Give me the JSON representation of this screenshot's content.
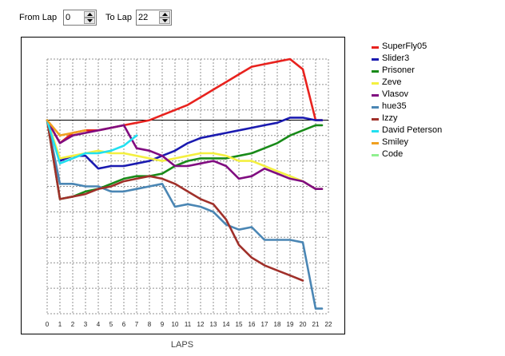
{
  "controls": {
    "from_label": "From Lap",
    "from_value": "0",
    "to_label": "To Lap",
    "to_value": "22"
  },
  "chart_data": {
    "type": "line",
    "xlabel": "LAPS",
    "ylabel": "",
    "x_ticks": [
      "0",
      "1",
      "2",
      "3",
      "4",
      "5",
      "6",
      "7",
      "8",
      "9",
      "10",
      "11",
      "12",
      "13",
      "14",
      "15",
      "16",
      "17",
      "18",
      "19",
      "20",
      "21",
      "22"
    ],
    "xlim": [
      0,
      22
    ],
    "ylim": [
      0,
      100
    ],
    "grid": true,
    "legend_position": "right",
    "series": [
      {
        "name": "SuperFly05",
        "color": "#e8221e",
        "x": [
          0,
          1,
          2,
          3,
          4,
          5,
          6,
          7,
          8,
          9,
          10,
          11,
          12,
          13,
          14,
          15,
          16,
          17,
          18,
          19,
          20,
          21,
          21.5
        ],
        "y": [
          76,
          67,
          71,
          72,
          72,
          73,
          74,
          75,
          76,
          78,
          80,
          82,
          85,
          88,
          91,
          94,
          97,
          98,
          99,
          100,
          96,
          76,
          76
        ]
      },
      {
        "name": "Slider3",
        "color": "#1a1ab0",
        "x": [
          0,
          1,
          2,
          3,
          4,
          5,
          6,
          7,
          8,
          9,
          10,
          11,
          12,
          13,
          14,
          15,
          16,
          17,
          18,
          19,
          20,
          21,
          21.5
        ],
        "y": [
          76,
          60,
          62,
          62,
          57,
          58,
          58,
          59,
          60,
          62,
          64,
          67,
          69,
          70,
          71,
          72,
          73,
          74,
          75,
          77,
          77,
          76,
          76
        ]
      },
      {
        "name": "Prisoner",
        "color": "#188a18",
        "x": [
          0,
          1,
          2,
          3,
          4,
          5,
          6,
          7,
          8,
          9,
          10,
          11,
          12,
          13,
          14,
          15,
          16,
          17,
          18,
          19,
          20,
          21,
          21.5
        ],
        "y": [
          76,
          45,
          46,
          48,
          49,
          51,
          53,
          54,
          54,
          55,
          58,
          60,
          61,
          61,
          61,
          62,
          63,
          65,
          67,
          70,
          72,
          74,
          74
        ]
      },
      {
        "name": "Zeve",
        "color": "#f4f040",
        "x": [
          0,
          1,
          2,
          3,
          4,
          5,
          6,
          7,
          8,
          9,
          10,
          11,
          12,
          13,
          14,
          15,
          16,
          17,
          18,
          19,
          20,
          21,
          21.5
        ],
        "y": [
          76,
          61,
          62,
          63,
          64,
          63,
          63,
          62,
          61,
          60,
          61,
          62,
          63,
          63,
          62,
          60,
          60,
          58,
          56,
          54,
          52,
          49,
          49
        ]
      },
      {
        "name": "Vlasov",
        "color": "#800c80",
        "x": [
          0,
          1,
          2,
          3,
          4,
          5,
          6,
          7,
          8,
          9,
          10,
          11,
          12,
          13,
          14,
          15,
          16,
          17,
          18,
          19,
          20,
          21,
          21.5
        ],
        "y": [
          76,
          67,
          70,
          71,
          72,
          73,
          74,
          65,
          64,
          62,
          58,
          58,
          59,
          60,
          58,
          53,
          54,
          57,
          55,
          53,
          52,
          49,
          49
        ]
      },
      {
        "name": "hue35",
        "color": "#4a86b4",
        "x": [
          0,
          1,
          2,
          3,
          4,
          5,
          6,
          7,
          8,
          9,
          10,
          11,
          12,
          13,
          14,
          15,
          16,
          17,
          18,
          19,
          20,
          21,
          21.5
        ],
        "y": [
          76,
          51,
          51,
          50,
          50,
          48,
          48,
          49,
          50,
          51,
          42,
          43,
          42,
          40,
          35,
          33,
          34,
          29,
          29,
          29,
          28,
          2,
          2
        ]
      },
      {
        "name": "Izzy",
        "color": "#a0302a",
        "x": [
          0,
          1,
          2,
          3,
          4,
          5,
          6,
          7,
          8,
          9,
          10,
          11,
          12,
          13,
          14,
          15,
          16,
          17,
          18,
          19,
          20
        ],
        "y": [
          76,
          45,
          46,
          47,
          49,
          50,
          52,
          53,
          54,
          53,
          51,
          48,
          45,
          43,
          37,
          27,
          22,
          19,
          17,
          15,
          13
        ]
      },
      {
        "name": "David Peterson",
        "color": "#22e0f0",
        "x": [
          0,
          1,
          2,
          3,
          4,
          5,
          6,
          7
        ],
        "y": [
          76,
          59,
          61,
          63,
          63,
          64,
          66,
          70
        ]
      },
      {
        "name": "Smiley",
        "color": "#f0a020",
        "x": [
          0,
          1,
          2,
          3
        ],
        "y": [
          76,
          70,
          71,
          72
        ]
      },
      {
        "name": "Code",
        "color": "#90f090",
        "x": [],
        "y": []
      }
    ]
  }
}
